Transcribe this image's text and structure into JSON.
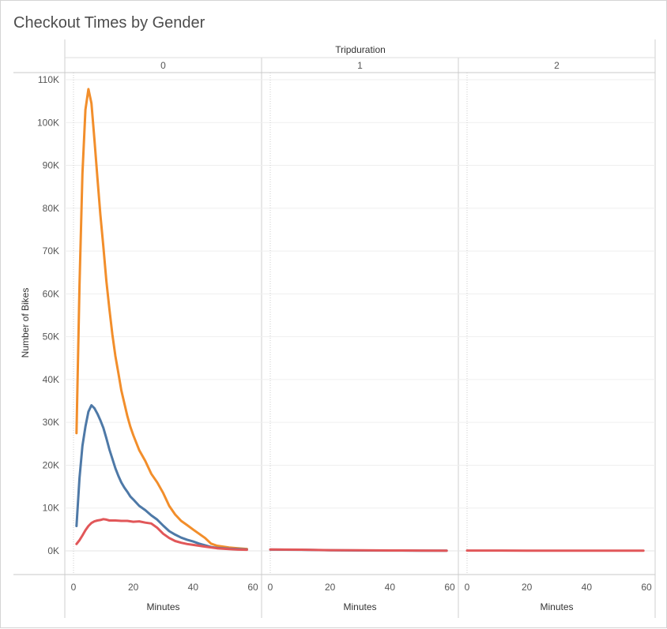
{
  "title": "Checkout Times by Gender",
  "chart_data": {
    "type": "line",
    "column_header": "Tripduration",
    "panels": [
      "0",
      "1",
      "2"
    ],
    "xlabel": "Minutes",
    "ylabel": "Number of Bikes",
    "xlim": [
      -3,
      62
    ],
    "ylim": [
      -5000,
      110000
    ],
    "x_ticks": [
      0,
      20,
      40,
      60
    ],
    "x_tick_labels": [
      "0",
      "20",
      "40",
      "60"
    ],
    "y_ticks": [
      0,
      10000,
      20000,
      30000,
      40000,
      50000,
      60000,
      70000,
      80000,
      90000,
      100000,
      110000
    ],
    "y_tick_labels": [
      "0K",
      "10K",
      "20K",
      "30K",
      "40K",
      "50K",
      "60K",
      "70K",
      "80K",
      "90K",
      "100K",
      "110K"
    ],
    "grid": true,
    "colors": {
      "orange": "#f28e2b",
      "blue": "#4e79a7",
      "red": "#e15759"
    },
    "series": [
      {
        "color": "#f28e2b",
        "panel": "0",
        "points": [
          [
            1,
            27500
          ],
          [
            2,
            62000
          ],
          [
            3,
            88000
          ],
          [
            4,
            103000
          ],
          [
            5,
            107800
          ],
          [
            6,
            104500
          ],
          [
            7,
            96000
          ],
          [
            8,
            87000
          ],
          [
            9,
            78500
          ],
          [
            10,
            71000
          ],
          [
            11,
            63000
          ],
          [
            12,
            56500
          ],
          [
            13,
            50500
          ],
          [
            14,
            45500
          ],
          [
            15,
            41500
          ],
          [
            16,
            37500
          ],
          [
            17,
            34500
          ],
          [
            18,
            31500
          ],
          [
            19,
            29000
          ],
          [
            20,
            27000
          ],
          [
            22,
            23500
          ],
          [
            24,
            21000
          ],
          [
            26,
            18000
          ],
          [
            28,
            16000
          ],
          [
            30,
            13500
          ],
          [
            32,
            10500
          ],
          [
            34,
            8500
          ],
          [
            36,
            7000
          ],
          [
            38,
            6000
          ],
          [
            40,
            5000
          ],
          [
            42,
            4000
          ],
          [
            44,
            3000
          ],
          [
            46,
            1700
          ],
          [
            48,
            1200
          ],
          [
            50,
            1000
          ],
          [
            52,
            800
          ],
          [
            55,
            600
          ],
          [
            58,
            450
          ]
        ]
      },
      {
        "color": "#4e79a7",
        "panel": "0",
        "points": [
          [
            1,
            5800
          ],
          [
            2,
            17000
          ],
          [
            3,
            24500
          ],
          [
            4,
            29000
          ],
          [
            5,
            32500
          ],
          [
            6,
            34000
          ],
          [
            7,
            33300
          ],
          [
            8,
            32000
          ],
          [
            9,
            30500
          ],
          [
            10,
            28700
          ],
          [
            11,
            26300
          ],
          [
            12,
            23700
          ],
          [
            13,
            21500
          ],
          [
            14,
            19300
          ],
          [
            15,
            17500
          ],
          [
            16,
            16000
          ],
          [
            17,
            14800
          ],
          [
            18,
            13800
          ],
          [
            19,
            12700
          ],
          [
            20,
            12000
          ],
          [
            22,
            10500
          ],
          [
            24,
            9500
          ],
          [
            26,
            8300
          ],
          [
            28,
            7300
          ],
          [
            30,
            5900
          ],
          [
            32,
            4600
          ],
          [
            34,
            3800
          ],
          [
            36,
            3100
          ],
          [
            38,
            2600
          ],
          [
            40,
            2200
          ],
          [
            42,
            1700
          ],
          [
            44,
            1300
          ],
          [
            46,
            900
          ],
          [
            48,
            700
          ],
          [
            50,
            600
          ],
          [
            52,
            500
          ],
          [
            55,
            400
          ],
          [
            58,
            330
          ]
        ]
      },
      {
        "color": "#e15759",
        "panel": "0",
        "points": [
          [
            1,
            1600
          ],
          [
            2,
            2500
          ],
          [
            3,
            3600
          ],
          [
            4,
            4800
          ],
          [
            5,
            5800
          ],
          [
            6,
            6500
          ],
          [
            7,
            6900
          ],
          [
            8,
            7100
          ],
          [
            9,
            7200
          ],
          [
            10,
            7400
          ],
          [
            11,
            7300
          ],
          [
            12,
            7100
          ],
          [
            14,
            7100
          ],
          [
            16,
            7000
          ],
          [
            18,
            7000
          ],
          [
            20,
            6800
          ],
          [
            22,
            6900
          ],
          [
            24,
            6600
          ],
          [
            26,
            6400
          ],
          [
            28,
            5400
          ],
          [
            30,
            4000
          ],
          [
            32,
            3000
          ],
          [
            34,
            2300
          ],
          [
            36,
            1900
          ],
          [
            38,
            1600
          ],
          [
            40,
            1400
          ],
          [
            42,
            1200
          ],
          [
            44,
            1000
          ],
          [
            46,
            800
          ],
          [
            48,
            600
          ],
          [
            50,
            500
          ],
          [
            52,
            400
          ],
          [
            55,
            300
          ],
          [
            58,
            250
          ]
        ]
      },
      {
        "color": "#4e79a7",
        "panel": "1",
        "points": [
          [
            0,
            300
          ],
          [
            10,
            250
          ],
          [
            20,
            150
          ],
          [
            30,
            100
          ],
          [
            40,
            80
          ],
          [
            50,
            60
          ],
          [
            59,
            40
          ]
        ]
      },
      {
        "color": "#e15759",
        "panel": "1",
        "points": [
          [
            0,
            320
          ],
          [
            10,
            270
          ],
          [
            20,
            170
          ],
          [
            30,
            120
          ],
          [
            40,
            100
          ],
          [
            50,
            80
          ],
          [
            59,
            60
          ]
        ]
      },
      {
        "color": "#e15759",
        "panel": "2",
        "points": [
          [
            0,
            80
          ],
          [
            20,
            60
          ],
          [
            40,
            50
          ],
          [
            59,
            40
          ]
        ]
      }
    ]
  }
}
